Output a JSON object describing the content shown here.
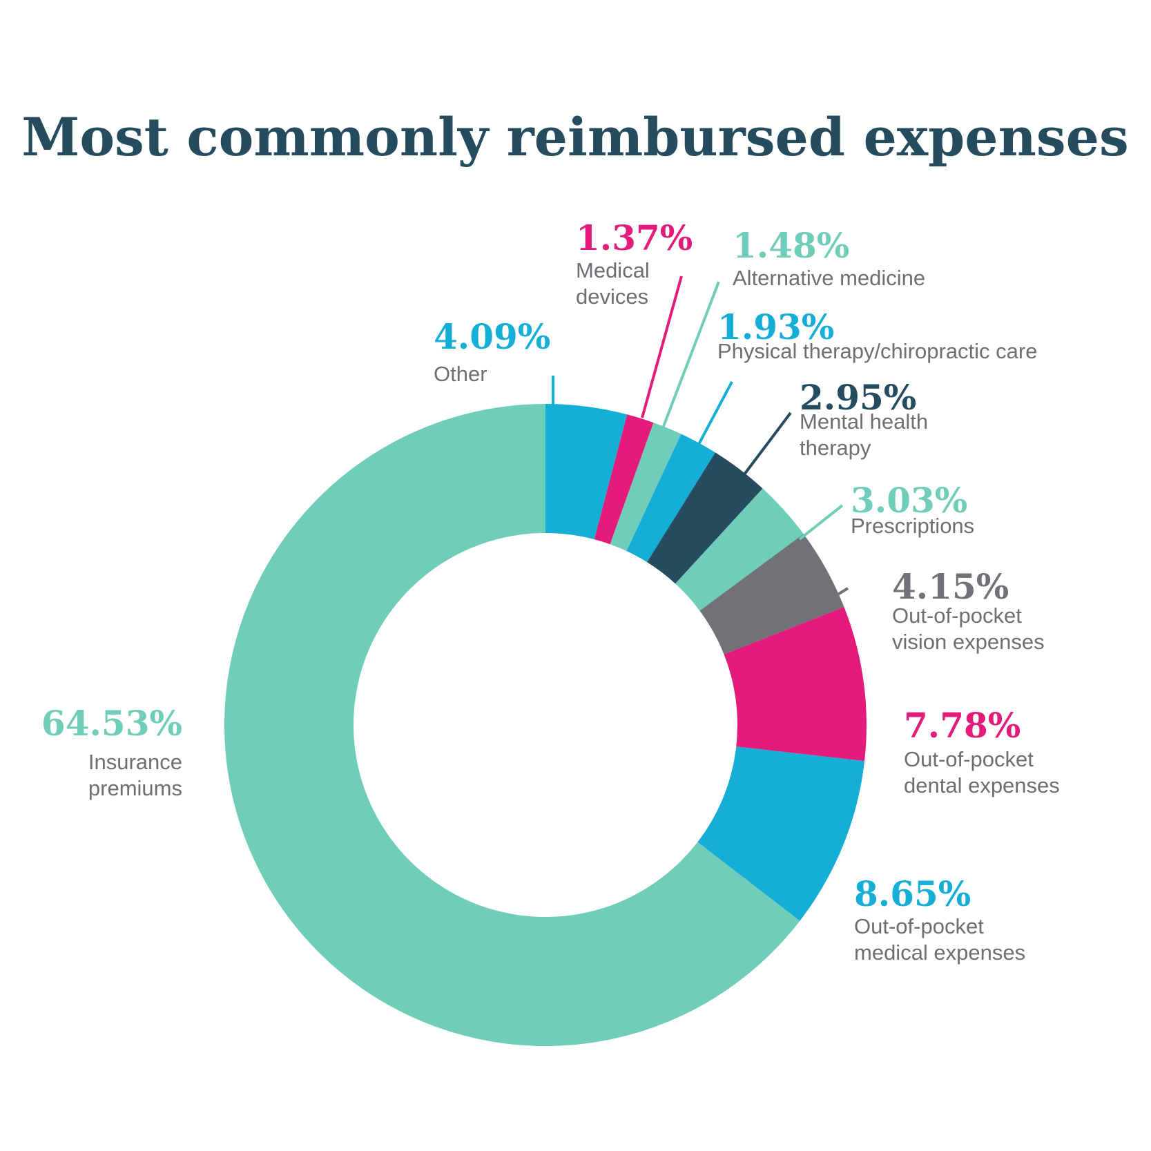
{
  "chart_data": {
    "type": "pie",
    "variant": "donut",
    "title": "Most commonly reimbursed expenses",
    "slices": [
      {
        "label": "Other",
        "label_lines": [
          "Other"
        ],
        "value": 4.09,
        "display": "4.09%",
        "color": "#14aed6"
      },
      {
        "label": "Medical devices",
        "label_lines": [
          "Medical",
          "devices"
        ],
        "value": 1.37,
        "display": "1.37%",
        "color": "#e31b7b"
      },
      {
        "label": "Alternative medicine",
        "label_lines": [
          "Alternative medicine"
        ],
        "value": 1.48,
        "display": "1.48%",
        "color": "#6fcdb9"
      },
      {
        "label": "Physical therapy/chiropractic care",
        "label_lines": [
          "Physical therapy/chiropractic care"
        ],
        "value": 1.93,
        "display": "1.93%",
        "color": "#14aed6"
      },
      {
        "label": "Mental health therapy",
        "label_lines": [
          "Mental health",
          "therapy"
        ],
        "value": 2.95,
        "display": "2.95%",
        "color": "#244b5e"
      },
      {
        "label": "Prescriptions",
        "label_lines": [
          "Prescriptions"
        ],
        "value": 3.03,
        "display": "3.03%",
        "color": "#6fcdb9"
      },
      {
        "label": "Out-of-pocket vision expenses",
        "label_lines": [
          "Out-of-pocket",
          "vision expenses"
        ],
        "value": 4.15,
        "display": "4.15%",
        "color": "#717276"
      },
      {
        "label": "Out-of-pocket dental expenses",
        "label_lines": [
          "Out-of-pocket",
          "dental expenses"
        ],
        "value": 7.78,
        "display": "7.78%",
        "color": "#e31b7b"
      },
      {
        "label": "Out-of-pocket medical expenses",
        "label_lines": [
          "Out-of-pocket",
          "medical expenses"
        ],
        "value": 8.65,
        "display": "8.65%",
        "color": "#14aed6"
      },
      {
        "label": "Insurance premiums",
        "label_lines": [
          "Insurance",
          "premiums"
        ],
        "value": 64.53,
        "display": "64.53%",
        "color": "#6fcdb9"
      }
    ],
    "start": "top",
    "direction": "clockwise"
  },
  "colors": {
    "title": "#244b5e",
    "category_text": "#6d6e73",
    "background": "#ffffff"
  }
}
